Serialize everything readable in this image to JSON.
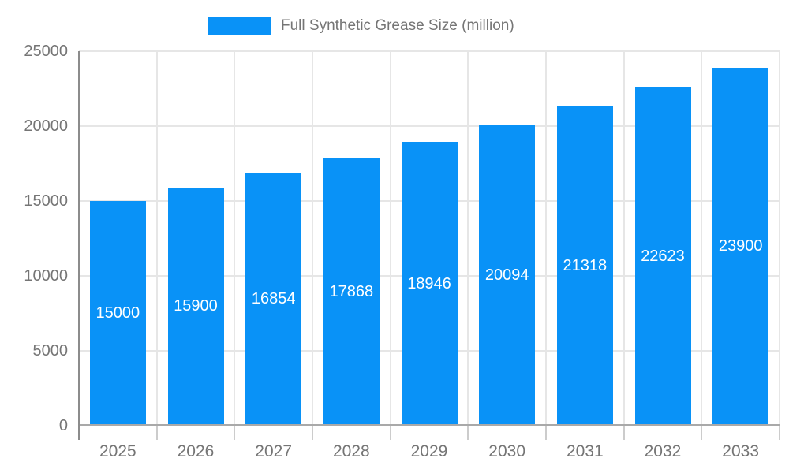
{
  "legend": {
    "label": "Full Synthetic Grease Size (million)"
  },
  "chart_data": {
    "type": "bar",
    "title": "",
    "series_name": "Full Synthetic Grease Size (million)",
    "categories": [
      "2025",
      "2026",
      "2027",
      "2028",
      "2029",
      "2030",
      "2031",
      "2032",
      "2033"
    ],
    "values": [
      15000,
      15900,
      16854,
      17868,
      18946,
      20094,
      21318,
      22623,
      23900
    ],
    "bar_labels": [
      "15000",
      "15900",
      "16854",
      "17868",
      "18946",
      "20094",
      "21318",
      "22623",
      "23900"
    ],
    "xlabel": "",
    "ylabel": "",
    "ylim": [
      0,
      25000
    ],
    "yticks": [
      0,
      5000,
      10000,
      15000,
      20000,
      25000
    ],
    "grid": "horizontal gridlines at y-ticks plus vertical category separator lines",
    "legend_position": "top-center",
    "value_label_position": "inside-center",
    "colors": {
      "bar": "#0992f7",
      "bar_label_text": "#ffffff",
      "axis_text": "#757575",
      "gridline": "#e6e6e6",
      "axis_line": "#8c8c8c",
      "baseline": "#a9a9a9",
      "tick": "#cccccc",
      "background": "#ffffff"
    }
  }
}
